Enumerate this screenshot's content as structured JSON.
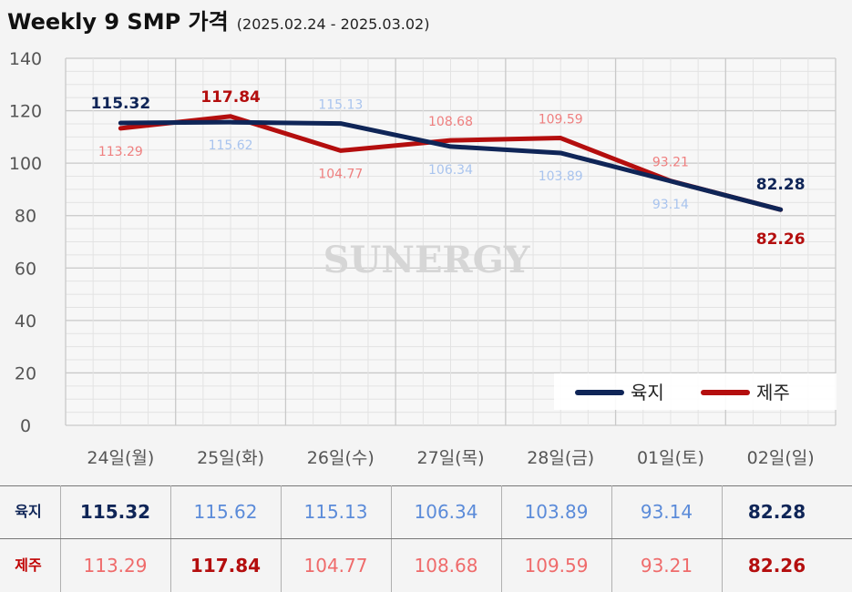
{
  "title": "Weekly 9 SMP 가격",
  "subtitle": "(2025.02.24 - 2025.03.02)",
  "watermark": "SUNERGY",
  "chart_data": {
    "type": "line",
    "categories": [
      "24일(월)",
      "25일(화)",
      "26일(수)",
      "27일(목)",
      "28일(금)",
      "01일(토)",
      "02일(일)"
    ],
    "series": [
      {
        "name": "육지",
        "values": [
          115.32,
          115.62,
          115.13,
          106.34,
          103.89,
          93.14,
          82.28
        ],
        "labels": [
          "115.32",
          "115.62",
          "115.13",
          "106.34",
          "103.89",
          "93.14",
          "82.28"
        ],
        "color": "#0f2557",
        "label_color": "#a9c4ee"
      },
      {
        "name": "제주",
        "values": [
          113.29,
          117.84,
          104.77,
          108.68,
          109.59,
          93.21,
          82.26
        ],
        "labels": [
          "113.29",
          "117.84",
          "104.77",
          "108.68",
          "109.59",
          "93.21",
          "82.26"
        ],
        "color": "#b40e0e",
        "label_color": "#ef7f7f"
      }
    ],
    "ylim": [
      0,
      140
    ],
    "yticks": [
      "0",
      "20",
      "40",
      "60",
      "80",
      "100",
      "120",
      "140"
    ],
    "grid": true,
    "legend": "bottom-right"
  },
  "table": {
    "rows": [
      {
        "label": "육지",
        "label_color": "#0f2557",
        "values": [
          "115.32",
          "115.62",
          "115.13",
          "106.34",
          "103.89",
          "93.14",
          "82.28"
        ],
        "normal_color": "#5b8bd9",
        "emph_color": "#0f2557"
      },
      {
        "label": "제주",
        "label_color": "#c00000",
        "values": [
          "113.29",
          "117.84",
          "104.77",
          "108.68",
          "109.59",
          "93.21",
          "82.26"
        ],
        "normal_color": "#ef6b6b",
        "emph_color": "#b40e0e"
      }
    ]
  }
}
